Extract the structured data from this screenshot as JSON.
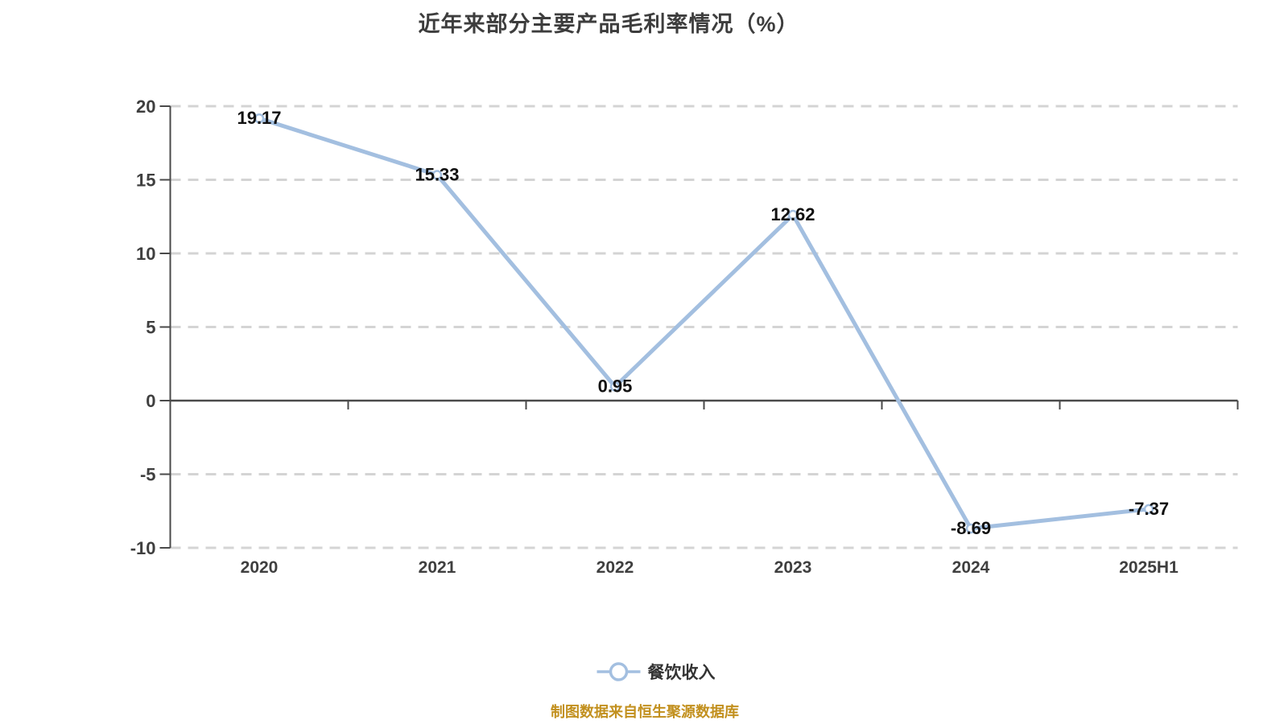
{
  "title": "近年来部分主要产品毛利率情况（%）",
  "chart_data": {
    "type": "line",
    "title": "近年来部分主要产品毛利率情况（%）",
    "categories": [
      "2020",
      "2021",
      "2022",
      "2023",
      "2024",
      "2025H1"
    ],
    "series": [
      {
        "name": "餐饮收入",
        "values": [
          19.17,
          15.33,
          0.95,
          12.62,
          -8.69,
          -7.37
        ]
      }
    ],
    "data_labels": [
      "19.17",
      "15.33",
      "0.95",
      "12.62",
      "-8.69",
      "-7.37"
    ],
    "ylim": [
      -10,
      20
    ],
    "yticks": [
      20,
      15,
      10,
      5,
      0,
      -5,
      -10
    ],
    "grid": "horizontal-dashed",
    "legend_position": "bottom",
    "marker": "circle-open"
  },
  "legend": {
    "label": "餐饮收入"
  },
  "footer": {
    "text": "制图数据来自恒生聚源数据库"
  },
  "colors": {
    "line": "#a3bfe0",
    "marker_fill": "#ffffff",
    "data_label": "#111111",
    "axis": "#4a4a4a",
    "tick_label": "#3f3f3f",
    "grid": "#d4d4d4",
    "title": "#3d3d3d",
    "legend_text": "#333333",
    "footer_text": "#c2901e",
    "background": "#ffffff"
  }
}
